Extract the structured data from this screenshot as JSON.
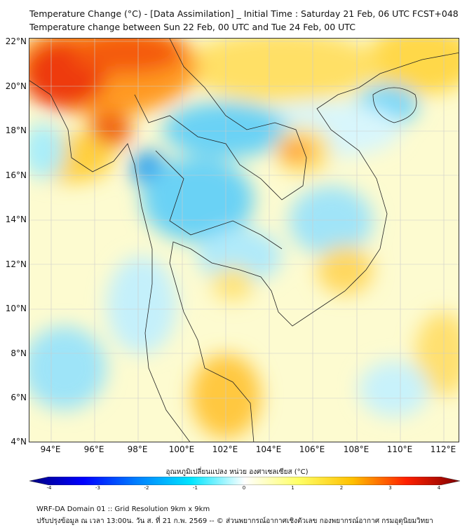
{
  "title_line1": "Temperature Change (°C) - [Data Assimilation] _ Initial Time : Saturday 21 Feb, 06 UTC FCST+048",
  "title_line2": "Temperature change between Sun 22 Feb, 00 UTC and Tue 24 Feb, 00 UTC",
  "lat_labels": [
    "22°N",
    "20°N",
    "18°N",
    "16°N",
    "14°N",
    "12°N",
    "10°N",
    "8°N",
    "6°N",
    "4°N"
  ],
  "lon_labels": [
    "94°E",
    "96°E",
    "98°E",
    "100°E",
    "102°E",
    "104°E",
    "106°E",
    "108°E",
    "110°E",
    "112°E"
  ],
  "colorbar": {
    "label": "อุณหภูมิเปลี่ยนแปลง หน่วย องศาเซลเซียส (°C)",
    "ticks": [
      "-4",
      "-3",
      "-2",
      "-1",
      "0",
      "1",
      "2",
      "3",
      "4"
    ],
    "range": [
      -4,
      4
    ],
    "colors": [
      "#00007f",
      "#0000ff",
      "#0080ff",
      "#00e5ff",
      "#ffffff",
      "#ffff66",
      "#ffc000",
      "#ff2000",
      "#7f0000"
    ]
  },
  "footer_line1": "WRF-DA Domain 01 :: Grid Resolution 9km x 9km",
  "footer_line2": "ปรับปรุงข้อมูล ณ เวลา 13:00น. วัน ส. ที่ 21 ก.พ. 2569 -- © ส่วนพยากรณ์อากาศเชิงตัวเลข กองพยากรณ์อากาศ กรมอุตุนิยมวิทยา"
}
